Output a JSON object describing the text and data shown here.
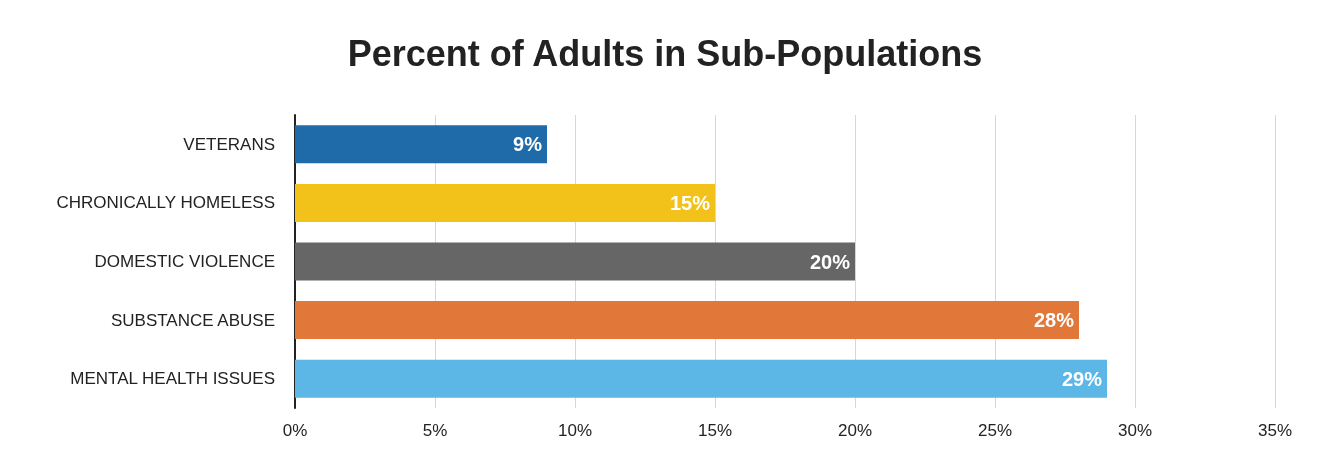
{
  "chart_data": {
    "type": "bar",
    "orientation": "horizontal",
    "title": "Percent of Adults in Sub-Populations",
    "categories": [
      "VETERANS",
      "CHRONICALLY HOMELESS",
      "DOMESTIC VIOLENCE",
      "SUBSTANCE ABUSE",
      "MENTAL HEALTH ISSUES"
    ],
    "values": [
      9,
      15,
      20,
      28,
      29
    ],
    "colors": [
      "#1f6aa8",
      "#f2c21a",
      "#666666",
      "#e2773a",
      "#5cb7e6"
    ],
    "value_labels": [
      "9%",
      "15%",
      "20%",
      "28%",
      "29%"
    ],
    "xlim": [
      0,
      35
    ],
    "xticks": [
      {
        "value": 0,
        "label": "0%"
      },
      {
        "value": 5,
        "label": "5%"
      },
      {
        "value": 10,
        "label": "10%"
      },
      {
        "value": 15,
        "label": "15%"
      },
      {
        "value": 20,
        "label": "20%"
      },
      {
        "value": 25,
        "label": "25%"
      },
      {
        "value": 30,
        "label": "30%"
      },
      {
        "value": 35,
        "label": "35%"
      }
    ],
    "grid": "x"
  }
}
